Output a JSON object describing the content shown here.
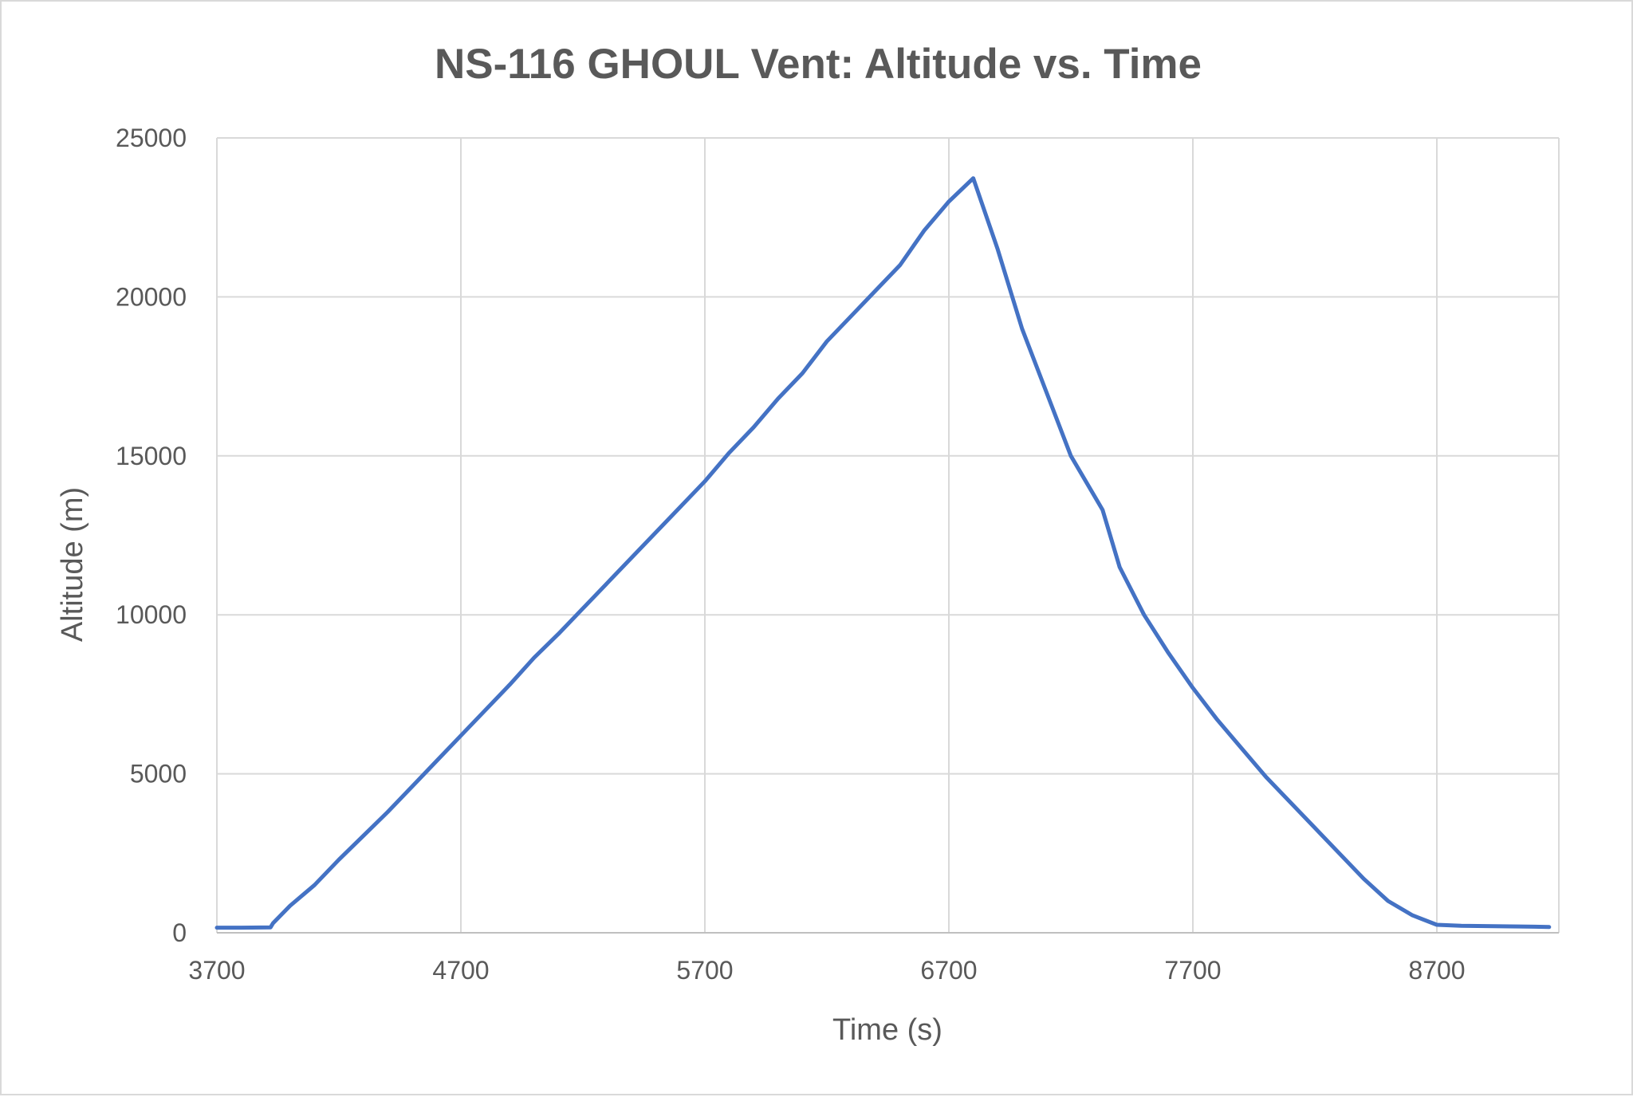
{
  "chart_data": {
    "type": "line",
    "title": "NS-116 GHOUL Vent: Altitude vs. Time",
    "xlabel": "Time (s)",
    "ylabel": "Altitude (m)",
    "xlim": [
      3700,
      9200
    ],
    "ylim": [
      0,
      25000
    ],
    "xticks": [
      3700,
      4700,
      5700,
      6700,
      7700,
      8700
    ],
    "yticks": [
      0,
      5000,
      10000,
      15000,
      20000,
      25000
    ],
    "grid": true,
    "legend": "none",
    "colors": {
      "series": "#4472c4",
      "grid": "#d9d9d9",
      "text": "#595959"
    },
    "series": [
      {
        "x": [
          3700,
          3800,
          3920,
          3930,
          4000,
          4100,
          4200,
          4300,
          4400,
          4500,
          4600,
          4700,
          4800,
          4900,
          5000,
          5100,
          5200,
          5300,
          5400,
          5500,
          5600,
          5700,
          5800,
          5900,
          6000,
          6100,
          6200,
          6300,
          6400,
          6500,
          6600,
          6700,
          6800,
          6900,
          7000,
          7100,
          7200,
          7330,
          7400,
          7500,
          7600,
          7700,
          7800,
          7900,
          8000,
          8100,
          8200,
          8300,
          8400,
          8500,
          8600,
          8700,
          8800,
          8900,
          9000,
          9100,
          9160
        ],
        "y": [
          160,
          160,
          170,
          300,
          850,
          1500,
          2300,
          3050,
          3800,
          4600,
          5400,
          6200,
          7000,
          7800,
          8650,
          9400,
          10200,
          11000,
          11800,
          12600,
          13400,
          14200,
          15100,
          15900,
          16800,
          17600,
          18600,
          19400,
          20200,
          21000,
          22100,
          23000,
          23730,
          21500,
          19000,
          17000,
          15000,
          13300,
          11500,
          10000,
          8800,
          7700,
          6700,
          5800,
          4900,
          4100,
          3300,
          2500,
          1700,
          1000,
          550,
          250,
          220,
          210,
          200,
          190,
          180
        ]
      }
    ]
  }
}
